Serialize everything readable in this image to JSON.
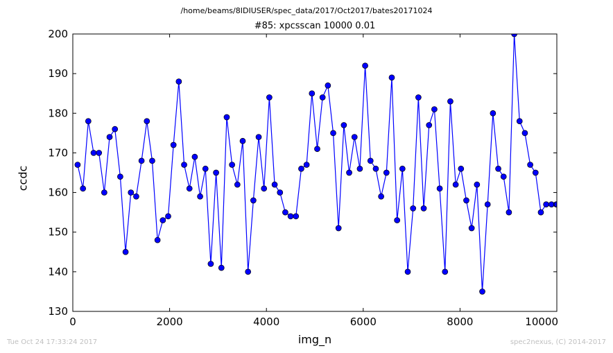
{
  "header": {
    "path": "/home/beams/8IDIUSER/spec_data/2017/Oct2017/bates20171024"
  },
  "footer": {
    "timestamp": "Tue Oct 24 17:33:24 2017",
    "credit": "spec2nexus, (C) 2014-2017"
  },
  "chart_data": {
    "type": "line",
    "title": "#85: xpcsscan 10000 0.01",
    "xlabel": "img_n",
    "ylabel": "ccdc",
    "xlim": [
      0,
      10000
    ],
    "ylim": [
      130,
      200
    ],
    "xticks": [
      "0",
      "2000",
      "4000",
      "6000",
      "8000",
      "10000"
    ],
    "yticks": [
      "130",
      "140",
      "150",
      "160",
      "170",
      "180",
      "190",
      "200"
    ],
    "grid": false,
    "color": "#0000ff",
    "marker": "circle",
    "x": [
      99,
      210,
      320,
      430,
      540,
      650,
      760,
      870,
      980,
      1090,
      1200,
      1310,
      1420,
      1530,
      1640,
      1750,
      1860,
      1970,
      2080,
      2190,
      2300,
      2410,
      2520,
      2630,
      2740,
      2850,
      2960,
      3070,
      3180,
      3290,
      3400,
      3510,
      3620,
      3730,
      3840,
      3950,
      4060,
      4170,
      4280,
      4390,
      4500,
      4610,
      4720,
      4830,
      4940,
      5050,
      5160,
      5270,
      5380,
      5490,
      5600,
      5710,
      5820,
      5930,
      6040,
      6150,
      6260,
      6370,
      6480,
      6590,
      6700,
      6810,
      6920,
      7030,
      7140,
      7250,
      7360,
      7470,
      7580,
      7690,
      7800,
      7910,
      8020,
      8130,
      8240,
      8350,
      8460,
      8570,
      8680,
      8790,
      8900,
      9010,
      9120,
      9230,
      9340,
      9450,
      9560,
      9670,
      9780,
      9890,
      9990,
      10000
    ],
    "y": [
      167,
      161,
      178,
      170,
      170,
      160,
      174,
      176,
      164,
      145,
      160,
      159,
      168,
      178,
      168,
      148,
      153,
      154,
      172,
      188,
      167,
      161,
      169,
      159,
      166,
      142,
      165,
      141,
      179,
      167,
      162,
      173,
      140,
      158,
      174,
      161,
      184,
      162,
      160,
      155,
      154,
      154,
      166,
      167,
      185,
      171,
      184,
      187,
      175,
      151,
      177,
      165,
      174,
      166,
      192,
      168,
      166,
      159,
      165,
      189,
      153,
      166,
      140,
      156,
      184,
      156,
      177,
      181,
      161,
      140,
      183,
      162,
      166,
      158,
      151,
      162,
      135,
      157,
      180,
      166,
      164,
      155,
      200,
      178,
      175,
      167,
      165,
      155,
      157,
      157,
      157,
      157
    ]
  }
}
